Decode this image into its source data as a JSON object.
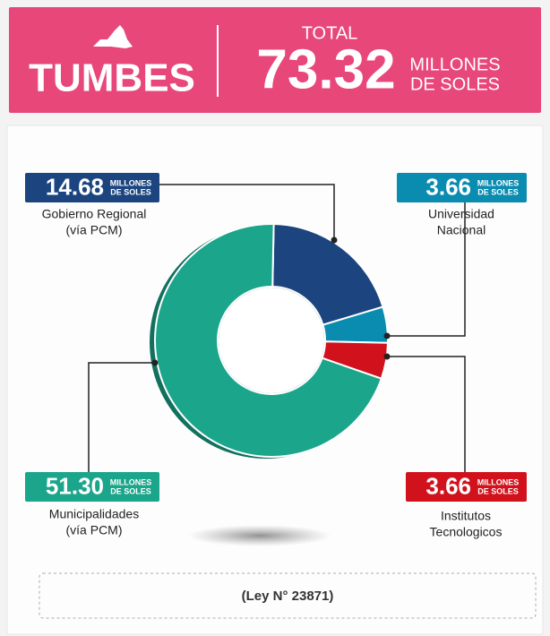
{
  "chart_data": {
    "type": "donut",
    "title": "TUMBES",
    "total_label": "TOTAL",
    "total": 73.32,
    "unit": [
      "MILLONES",
      "DE SOLES"
    ],
    "categories": [
      [
        "Gobierno Regional",
        "(vía PCM)"
      ],
      [
        "Universidad",
        "Nacional"
      ],
      [
        "Institutos",
        "Tecnologicos"
      ],
      [
        "Municipalidades",
        "(vía PCM)"
      ]
    ],
    "values": [
      14.68,
      3.66,
      3.66,
      51.3
    ],
    "value_labels": [
      "14.68",
      "3.66",
      "3.66",
      "51.30"
    ],
    "colors": [
      "#1c4580",
      "#0a8bb0",
      "#d1121c",
      "#1ba58b"
    ],
    "note": "(Ley N° 23871)"
  }
}
